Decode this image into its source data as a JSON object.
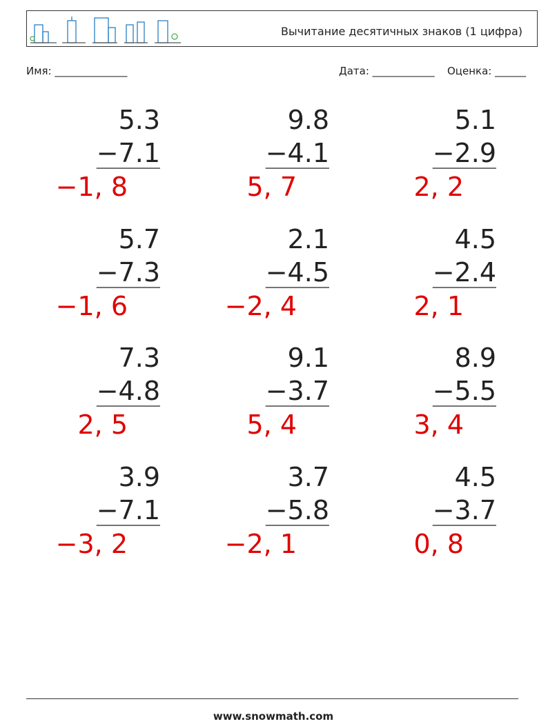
{
  "header": {
    "title": "Вычитание десятичных знаков (1 цифра)"
  },
  "fields": {
    "name": "Имя: ______________",
    "date": "Дата: ____________",
    "grade": "Оценка: ______"
  },
  "problems": [
    {
      "top": "5.3",
      "bottom": "−7.1",
      "answer": "−1, 8"
    },
    {
      "top": "9.8",
      "bottom": "−4.1",
      "answer": "5, 7"
    },
    {
      "top": "5.1",
      "bottom": "−2.9",
      "answer": "2, 2"
    },
    {
      "top": "5.7",
      "bottom": "−7.3",
      "answer": "−1, 6"
    },
    {
      "top": "2.1",
      "bottom": "−4.5",
      "answer": "−2, 4"
    },
    {
      "top": "4.5",
      "bottom": "−2.4",
      "answer": "2, 1"
    },
    {
      "top": "7.3",
      "bottom": "−4.8",
      "answer": "2, 5"
    },
    {
      "top": "9.1",
      "bottom": "−3.7",
      "answer": "5, 4"
    },
    {
      "top": "8.9",
      "bottom": "−5.5",
      "answer": "3, 4"
    },
    {
      "top": "3.9",
      "bottom": "−7.1",
      "answer": "−3, 2"
    },
    {
      "top": "3.7",
      "bottom": "−5.8",
      "answer": "−2, 1"
    },
    {
      "top": "4.5",
      "bottom": "−3.7",
      "answer": "0, 8"
    }
  ],
  "footer": {
    "url": "www.snowmath.com"
  }
}
